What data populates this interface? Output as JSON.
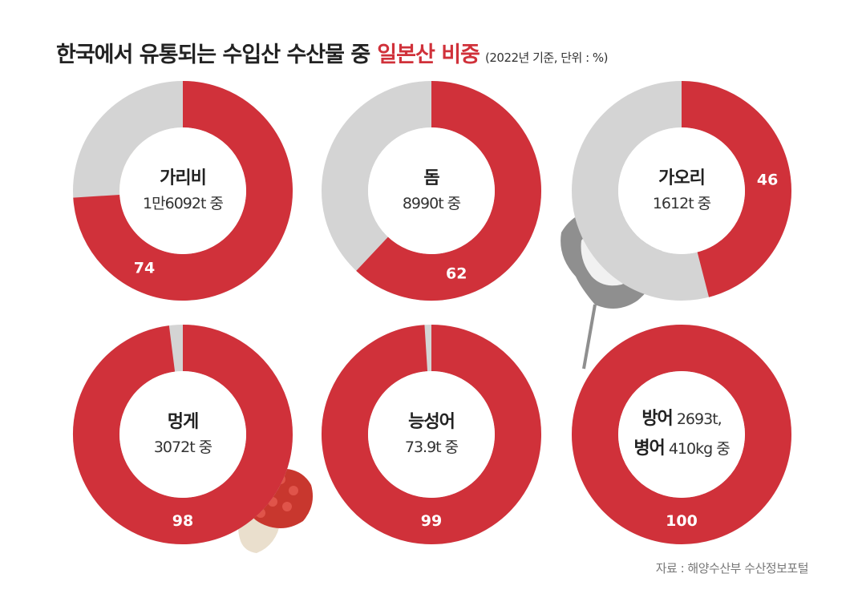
{
  "title": {
    "main": "한국에서 유통되는 수입산 수산물 중",
    "accent": "일본산 비중",
    "sub": "(2022년 기준, 단위 : %)"
  },
  "chart_data": {
    "type": "pie",
    "title": "한국에서 유통되는 수입산 수산물 중 일본산 비중",
    "subtitle": "(2022년 기준, 단위 : %)",
    "unit": "%",
    "items": [
      {
        "name": "가리비",
        "amount": "1만6092t 중",
        "value": 74
      },
      {
        "name": "돔",
        "amount": "8990t 중",
        "value": 62
      },
      {
        "name": "가오리",
        "amount": "1612t 중",
        "value": 46
      },
      {
        "name": "멍게",
        "amount": "3072t 중",
        "value": 98
      },
      {
        "name": "능성어",
        "amount": "73.9t 중",
        "value": 99
      },
      {
        "name": "방어",
        "amount": "2693t,",
        "name2": "병어",
        "amount2": "410kg 중",
        "value": 100
      }
    ],
    "colors": {
      "japan": "#d0313a",
      "other": "#d4d4d4",
      "label": "#ffffff"
    }
  },
  "source": "자료 : 해양수산부 수산정보포털"
}
